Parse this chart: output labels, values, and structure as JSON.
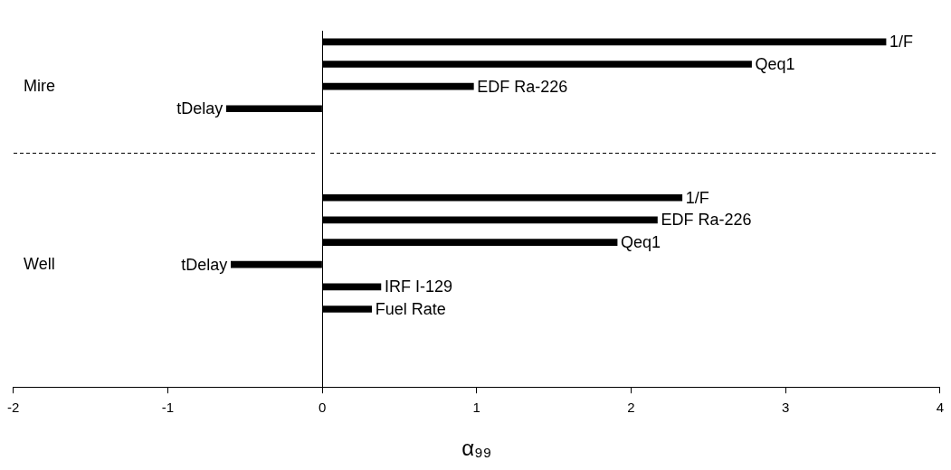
{
  "chart_data": {
    "type": "bar",
    "orientation": "horizontal",
    "xlabel": "α₉₉",
    "categories": [
      "1/F",
      "Qeq1",
      "EDF Ra-226",
      "tDelay",
      null,
      null,
      null,
      "1/F",
      "EDF Ra-226",
      "Qeq1",
      "tDelay",
      "IRF I-129",
      "Fuel Rate",
      null,
      null,
      null
    ],
    "values": [
      3.65,
      2.78,
      0.98,
      -0.62,
      null,
      null,
      null,
      2.33,
      2.17,
      1.91,
      -0.59,
      0.38,
      0.32,
      null,
      null,
      null
    ],
    "color": "#000000",
    "annotations": [
      "Mire",
      "Well"
    ],
    "xlim": [
      -2,
      4
    ],
    "xticks": [
      -2,
      -1,
      0,
      1,
      2,
      3,
      4
    ]
  }
}
